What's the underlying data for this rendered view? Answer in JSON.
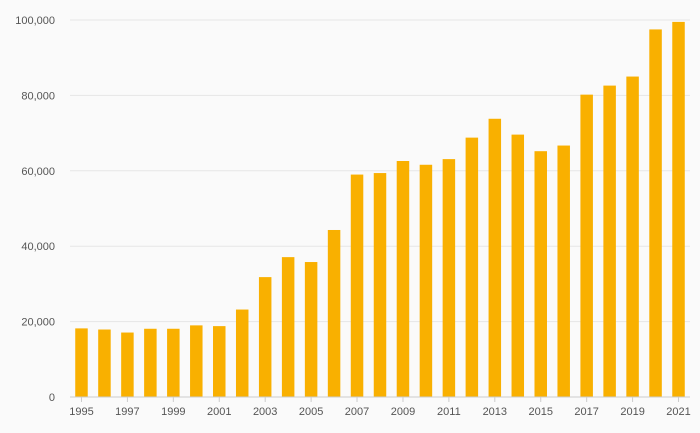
{
  "chart_data": {
    "type": "bar",
    "title": "",
    "xlabel": "",
    "ylabel": "",
    "ylim": [
      0,
      100000
    ],
    "yticks": [
      0,
      20000,
      40000,
      60000,
      80000,
      100000
    ],
    "ytick_labels": [
      "0",
      "20,000",
      "40,000",
      "60,000",
      "80,000",
      "100,000"
    ],
    "xtick_labels": [
      "1995",
      "1997",
      "1999",
      "2001",
      "2003",
      "2005",
      "2007",
      "2009",
      "2011",
      "2013",
      "2015",
      "2017",
      "2019",
      "2021"
    ],
    "grid": true,
    "bar_color": "#f9b000",
    "categories": [
      "1995",
      "1996",
      "1997",
      "1998",
      "1999",
      "2000",
      "2001",
      "2002",
      "2003",
      "2004",
      "2005",
      "2006",
      "2007",
      "2008",
      "2009",
      "2010",
      "2011",
      "2012",
      "2013",
      "2014",
      "2015",
      "2016",
      "2017",
      "2018",
      "2019",
      "2020",
      "2021"
    ],
    "values": [
      18200,
      17900,
      17100,
      18100,
      18100,
      19000,
      18800,
      23200,
      31800,
      37100,
      35800,
      44300,
      59000,
      59400,
      62600,
      61600,
      63100,
      68800,
      73800,
      69600,
      65200,
      66700,
      80200,
      82600,
      85000,
      97500,
      99500
    ]
  }
}
